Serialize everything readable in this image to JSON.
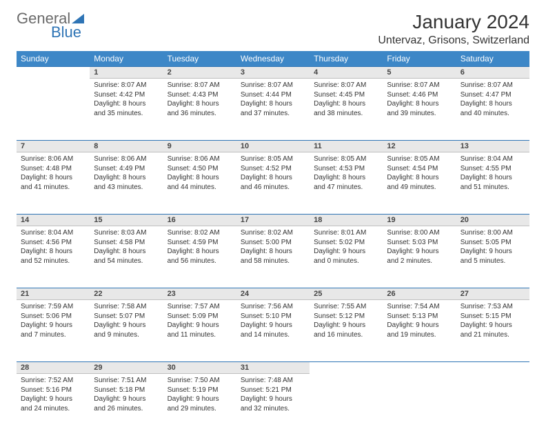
{
  "brand": {
    "word1": "General",
    "word2": "Blue"
  },
  "title": "January 2024",
  "location": "Untervaz, Grisons, Switzerland",
  "colors": {
    "header_bg": "#3d87c7",
    "header_text": "#ffffff",
    "accent": "#2e74b5",
    "daynum_bg": "#e8e8e8",
    "page_bg": "#ffffff",
    "text": "#333333"
  },
  "weekdays": [
    "Sunday",
    "Monday",
    "Tuesday",
    "Wednesday",
    "Thursday",
    "Friday",
    "Saturday"
  ],
  "weeks": [
    [
      null,
      {
        "n": "1",
        "sr": "8:07 AM",
        "ss": "4:42 PM",
        "dl": "8 hours and 35 minutes."
      },
      {
        "n": "2",
        "sr": "8:07 AM",
        "ss": "4:43 PM",
        "dl": "8 hours and 36 minutes."
      },
      {
        "n": "3",
        "sr": "8:07 AM",
        "ss": "4:44 PM",
        "dl": "8 hours and 37 minutes."
      },
      {
        "n": "4",
        "sr": "8:07 AM",
        "ss": "4:45 PM",
        "dl": "8 hours and 38 minutes."
      },
      {
        "n": "5",
        "sr": "8:07 AM",
        "ss": "4:46 PM",
        "dl": "8 hours and 39 minutes."
      },
      {
        "n": "6",
        "sr": "8:07 AM",
        "ss": "4:47 PM",
        "dl": "8 hours and 40 minutes."
      }
    ],
    [
      {
        "n": "7",
        "sr": "8:06 AM",
        "ss": "4:48 PM",
        "dl": "8 hours and 41 minutes."
      },
      {
        "n": "8",
        "sr": "8:06 AM",
        "ss": "4:49 PM",
        "dl": "8 hours and 43 minutes."
      },
      {
        "n": "9",
        "sr": "8:06 AM",
        "ss": "4:50 PM",
        "dl": "8 hours and 44 minutes."
      },
      {
        "n": "10",
        "sr": "8:05 AM",
        "ss": "4:52 PM",
        "dl": "8 hours and 46 minutes."
      },
      {
        "n": "11",
        "sr": "8:05 AM",
        "ss": "4:53 PM",
        "dl": "8 hours and 47 minutes."
      },
      {
        "n": "12",
        "sr": "8:05 AM",
        "ss": "4:54 PM",
        "dl": "8 hours and 49 minutes."
      },
      {
        "n": "13",
        "sr": "8:04 AM",
        "ss": "4:55 PM",
        "dl": "8 hours and 51 minutes."
      }
    ],
    [
      {
        "n": "14",
        "sr": "8:04 AM",
        "ss": "4:56 PM",
        "dl": "8 hours and 52 minutes."
      },
      {
        "n": "15",
        "sr": "8:03 AM",
        "ss": "4:58 PM",
        "dl": "8 hours and 54 minutes."
      },
      {
        "n": "16",
        "sr": "8:02 AM",
        "ss": "4:59 PM",
        "dl": "8 hours and 56 minutes."
      },
      {
        "n": "17",
        "sr": "8:02 AM",
        "ss": "5:00 PM",
        "dl": "8 hours and 58 minutes."
      },
      {
        "n": "18",
        "sr": "8:01 AM",
        "ss": "5:02 PM",
        "dl": "9 hours and 0 minutes."
      },
      {
        "n": "19",
        "sr": "8:00 AM",
        "ss": "5:03 PM",
        "dl": "9 hours and 2 minutes."
      },
      {
        "n": "20",
        "sr": "8:00 AM",
        "ss": "5:05 PM",
        "dl": "9 hours and 5 minutes."
      }
    ],
    [
      {
        "n": "21",
        "sr": "7:59 AM",
        "ss": "5:06 PM",
        "dl": "9 hours and 7 minutes."
      },
      {
        "n": "22",
        "sr": "7:58 AM",
        "ss": "5:07 PM",
        "dl": "9 hours and 9 minutes."
      },
      {
        "n": "23",
        "sr": "7:57 AM",
        "ss": "5:09 PM",
        "dl": "9 hours and 11 minutes."
      },
      {
        "n": "24",
        "sr": "7:56 AM",
        "ss": "5:10 PM",
        "dl": "9 hours and 14 minutes."
      },
      {
        "n": "25",
        "sr": "7:55 AM",
        "ss": "5:12 PM",
        "dl": "9 hours and 16 minutes."
      },
      {
        "n": "26",
        "sr": "7:54 AM",
        "ss": "5:13 PM",
        "dl": "9 hours and 19 minutes."
      },
      {
        "n": "27",
        "sr": "7:53 AM",
        "ss": "5:15 PM",
        "dl": "9 hours and 21 minutes."
      }
    ],
    [
      {
        "n": "28",
        "sr": "7:52 AM",
        "ss": "5:16 PM",
        "dl": "9 hours and 24 minutes."
      },
      {
        "n": "29",
        "sr": "7:51 AM",
        "ss": "5:18 PM",
        "dl": "9 hours and 26 minutes."
      },
      {
        "n": "30",
        "sr": "7:50 AM",
        "ss": "5:19 PM",
        "dl": "9 hours and 29 minutes."
      },
      {
        "n": "31",
        "sr": "7:48 AM",
        "ss": "5:21 PM",
        "dl": "9 hours and 32 minutes."
      },
      null,
      null,
      null
    ]
  ],
  "labels": {
    "sunrise": "Sunrise:",
    "sunset": "Sunset:",
    "daylight": "Daylight:"
  }
}
